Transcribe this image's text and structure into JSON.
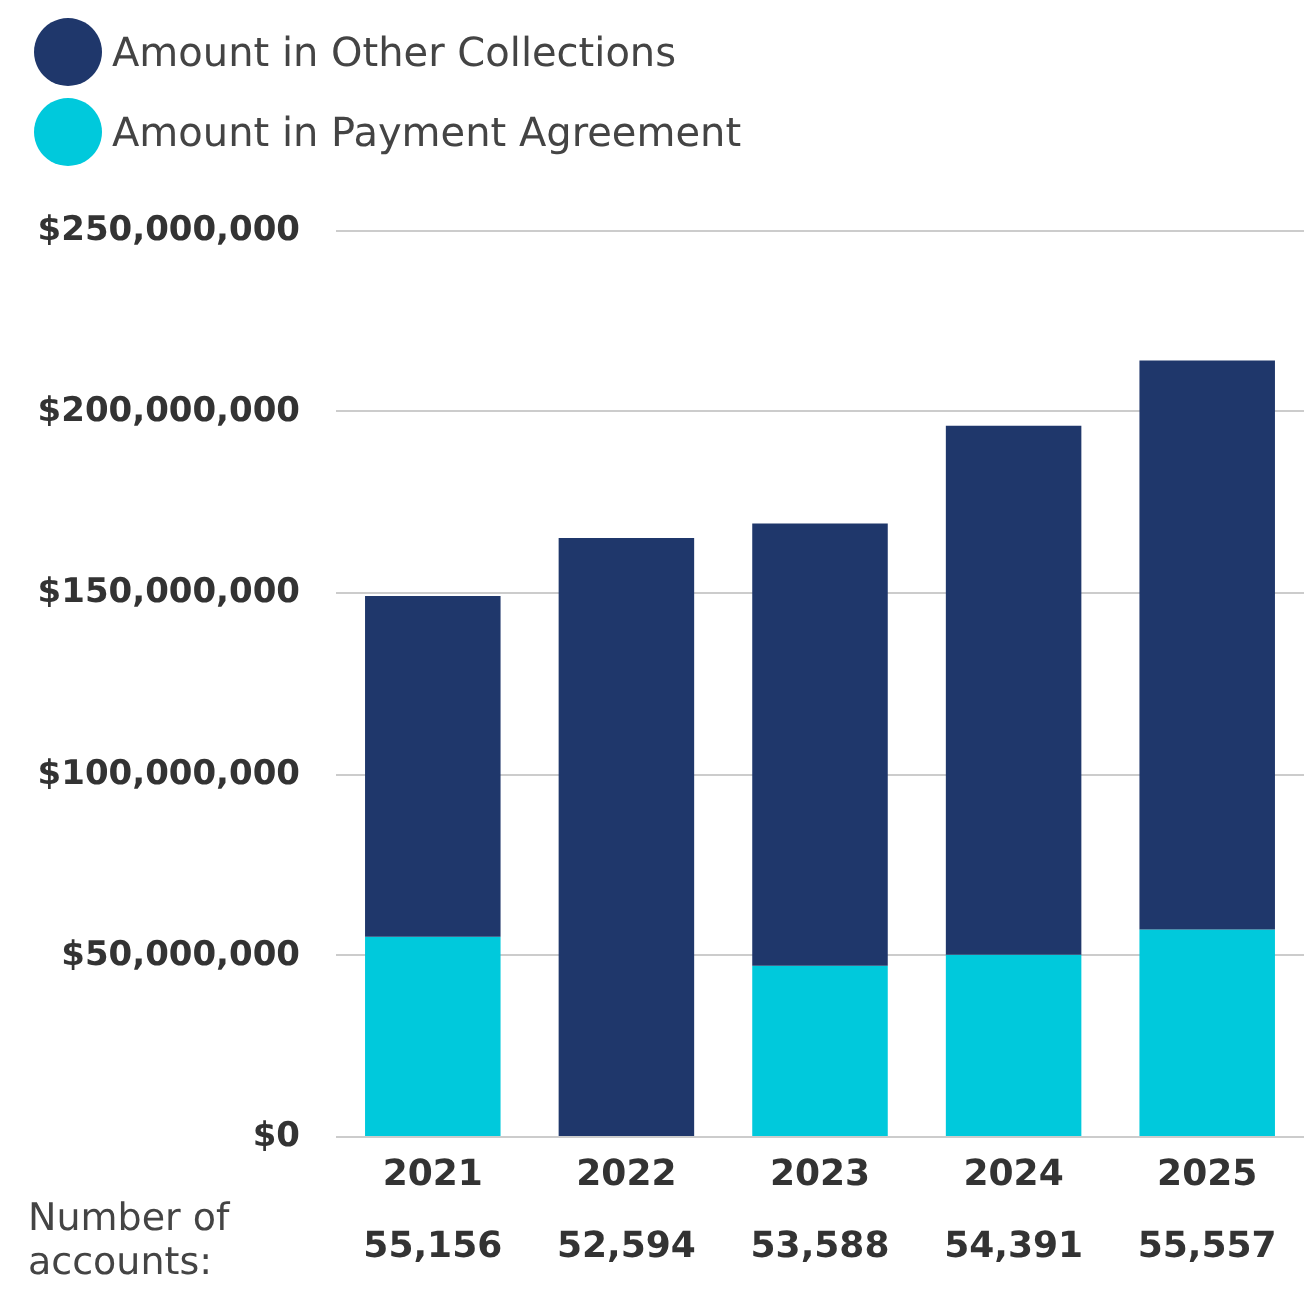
{
  "chart_data": {
    "type": "bar",
    "stacked": true,
    "categories": [
      "2021",
      "2022",
      "2023",
      "2024",
      "2025"
    ],
    "series": [
      {
        "name": "Amount in Payment Agreement",
        "color": "#00c9dc",
        "values": [
          55000000,
          0,
          47000000,
          50000000,
          57000000
        ]
      },
      {
        "name": "Amount in Other Collections",
        "color": "#1f376b",
        "values": [
          94000000,
          165000000,
          122000000,
          146000000,
          157000000
        ]
      }
    ],
    "ylim": [
      0,
      250000000
    ],
    "yticks": [
      {
        "value": 0,
        "label": "$0"
      },
      {
        "value": 50000000,
        "label": "$50,000,000"
      },
      {
        "value": 100000000,
        "label": "$100,000,000"
      },
      {
        "value": 150000000,
        "label": "$150,000,000"
      },
      {
        "value": 200000000,
        "label": "$200,000,000"
      },
      {
        "value": 250000000,
        "label": "$250,000,000"
      }
    ],
    "grid": "y",
    "legend": "top left",
    "annotations": [
      "Number of\naccounts:",
      "55,156",
      "52,594",
      "53,588",
      "54,391",
      "55,557"
    ]
  }
}
